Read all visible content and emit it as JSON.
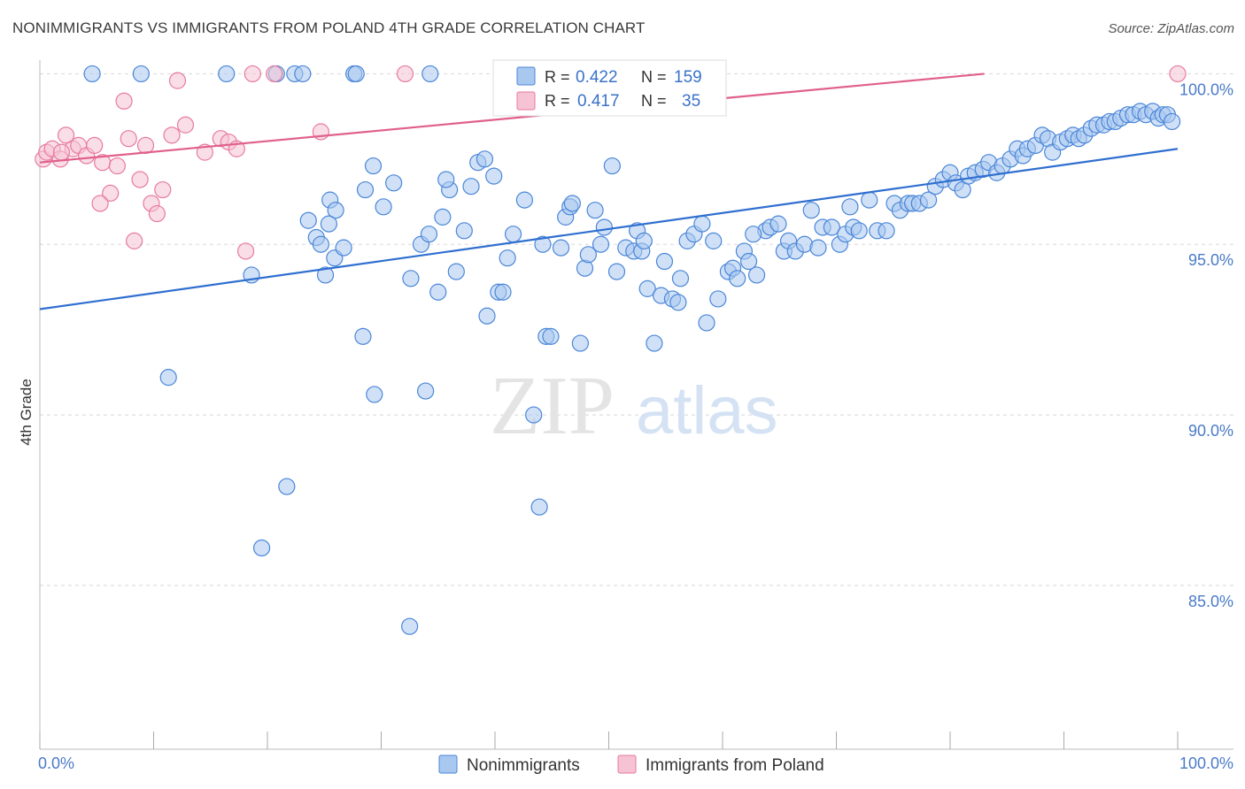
{
  "title": "NONIMMIGRANTS VS IMMIGRANTS FROM POLAND 4TH GRADE CORRELATION CHART",
  "source": "Source: ZipAtlas.com",
  "watermark": {
    "zip": "ZIP",
    "atlas": "atlas"
  },
  "colors": {
    "blue": "#4a86d8",
    "blue_fill": "#a9c8f0",
    "blue_line": "#2f6fd0",
    "pink": "#e77aa0",
    "pink_fill": "#f6c3d4",
    "pink_line": "#e0608a",
    "grid": "#d8d8d8",
    "tick_text": "#4a7bc8"
  },
  "legend": {
    "r_label": "R =",
    "n_label": "N =",
    "rows": [
      {
        "r": "0.422",
        "n": "159"
      },
      {
        "r": "0.417",
        "n": "35"
      }
    ]
  },
  "chart_data": {
    "type": "scatter",
    "title": "NONIMMIGRANTS VS IMMIGRANTS FROM POLAND 4TH GRADE CORRELATION CHART",
    "xlabel": "",
    "ylabel": "4th Grade",
    "xlim": [
      0,
      100
    ],
    "ylim": [
      80.2,
      100.4
    ],
    "x_tick_labels": [
      "0.0%",
      "100.0%"
    ],
    "y_ticks": [
      {
        "value": 100,
        "label": "100.0%"
      },
      {
        "value": 95,
        "label": "95.0%"
      },
      {
        "value": 90,
        "label": "90.0%"
      },
      {
        "value": 85,
        "label": "85.0%"
      }
    ],
    "grid": true,
    "legend_position": "top-center",
    "series": [
      {
        "name": "Nonimmigrants",
        "trend": {
          "x0": 0,
          "y0": 93.1,
          "x1": 100,
          "y1": 97.8
        },
        "points": [
          [
            4.6,
            100
          ],
          [
            8.9,
            100
          ],
          [
            16.4,
            100
          ],
          [
            20.8,
            100
          ],
          [
            22.4,
            100
          ],
          [
            23.1,
            100
          ],
          [
            27.6,
            100
          ],
          [
            27.8,
            100
          ],
          [
            34.3,
            100
          ],
          [
            11.3,
            91.1
          ],
          [
            21.7,
            87.9
          ],
          [
            19.5,
            86.1
          ],
          [
            32.5,
            83.8
          ],
          [
            29.4,
            90.6
          ],
          [
            33.9,
            90.7
          ],
          [
            43.4,
            90
          ],
          [
            43.9,
            87.3
          ],
          [
            29.3,
            97.3
          ],
          [
            28.6,
            96.6
          ],
          [
            25.5,
            96.3
          ],
          [
            26,
            96
          ],
          [
            25.4,
            95.6
          ],
          [
            23.6,
            95.7
          ],
          [
            24.3,
            95.2
          ],
          [
            24.7,
            95
          ],
          [
            25.9,
            94.6
          ],
          [
            25.1,
            94.1
          ],
          [
            28.4,
            92.3
          ],
          [
            32.6,
            94
          ],
          [
            33.5,
            95
          ],
          [
            34.2,
            95.3
          ],
          [
            35,
            93.6
          ],
          [
            35.4,
            95.8
          ],
          [
            36,
            96.6
          ],
          [
            35.7,
            96.9
          ],
          [
            36.6,
            94.2
          ],
          [
            37.9,
            96.7
          ],
          [
            38.5,
            97.4
          ],
          [
            39.1,
            97.5
          ],
          [
            39.9,
            97
          ],
          [
            39.3,
            92.9
          ],
          [
            40.3,
            93.6
          ],
          [
            40.7,
            93.6
          ],
          [
            41.1,
            94.6
          ],
          [
            41.6,
            95.3
          ],
          [
            42.6,
            96.3
          ],
          [
            44.2,
            95
          ],
          [
            44.5,
            92.3
          ],
          [
            44.9,
            92.3
          ],
          [
            46.2,
            95.8
          ],
          [
            46.6,
            96.1
          ],
          [
            46.8,
            96.2
          ],
          [
            47.5,
            92.1
          ],
          [
            47.9,
            94.3
          ],
          [
            48.2,
            94.7
          ],
          [
            48.8,
            96
          ],
          [
            49.3,
            95
          ],
          [
            49.6,
            95.5
          ],
          [
            50.3,
            97.3
          ],
          [
            50.7,
            94.2
          ],
          [
            51.5,
            94.9
          ],
          [
            52.2,
            94.8
          ],
          [
            52.5,
            95.4
          ],
          [
            52.9,
            94.8
          ],
          [
            53.4,
            93.7
          ],
          [
            54,
            92.1
          ],
          [
            54.6,
            93.5
          ],
          [
            54.9,
            94.5
          ],
          [
            55.6,
            93.4
          ],
          [
            56.1,
            93.3
          ],
          [
            56.3,
            94
          ],
          [
            56.9,
            95.1
          ],
          [
            57.5,
            95.3
          ],
          [
            58.2,
            95.6
          ],
          [
            58.6,
            92.7
          ],
          [
            59.2,
            95.1
          ],
          [
            59.6,
            93.4
          ],
          [
            60.5,
            94.2
          ],
          [
            60.9,
            94.3
          ],
          [
            61.3,
            94
          ],
          [
            61.9,
            94.8
          ],
          [
            62.3,
            94.5
          ],
          [
            63,
            94.1
          ],
          [
            63.8,
            95.4
          ],
          [
            64.2,
            95.5
          ],
          [
            64.9,
            95.6
          ],
          [
            65.4,
            94.8
          ],
          [
            65.8,
            95.1
          ],
          [
            66.4,
            94.8
          ],
          [
            67.2,
            95
          ],
          [
            67.8,
            96
          ],
          [
            68.4,
            94.9
          ],
          [
            68.8,
            95.5
          ],
          [
            69.6,
            95.5
          ],
          [
            70.3,
            95
          ],
          [
            70.8,
            95.3
          ],
          [
            71.5,
            95.5
          ],
          [
            72,
            95.4
          ],
          [
            72.9,
            96.3
          ],
          [
            73.6,
            95.4
          ],
          [
            74.4,
            95.4
          ],
          [
            75.1,
            96.2
          ],
          [
            75.6,
            96
          ],
          [
            76.3,
            96.2
          ],
          [
            76.7,
            96.2
          ],
          [
            77.3,
            96.2
          ],
          [
            78.1,
            96.3
          ],
          [
            78.7,
            96.7
          ],
          [
            79.4,
            96.9
          ],
          [
            80,
            97.1
          ],
          [
            80.5,
            96.8
          ],
          [
            81.1,
            96.6
          ],
          [
            81.6,
            97
          ],
          [
            82.2,
            97.1
          ],
          [
            82.9,
            97.2
          ],
          [
            83.4,
            97.4
          ],
          [
            84.1,
            97.1
          ],
          [
            84.6,
            97.3
          ],
          [
            85.3,
            97.5
          ],
          [
            85.9,
            97.8
          ],
          [
            86.4,
            97.6
          ],
          [
            86.8,
            97.8
          ],
          [
            87.5,
            97.9
          ],
          [
            88.1,
            98.2
          ],
          [
            88.6,
            98.1
          ],
          [
            89,
            97.7
          ],
          [
            89.7,
            98
          ],
          [
            90.3,
            98.1
          ],
          [
            90.8,
            98.2
          ],
          [
            91.3,
            98.1
          ],
          [
            91.8,
            98.2
          ],
          [
            92.4,
            98.4
          ],
          [
            92.9,
            98.5
          ],
          [
            93.5,
            98.5
          ],
          [
            94,
            98.6
          ],
          [
            94.5,
            98.6
          ],
          [
            95,
            98.7
          ],
          [
            95.6,
            98.8
          ],
          [
            96.1,
            98.8
          ],
          [
            96.7,
            98.9
          ],
          [
            97.2,
            98.8
          ],
          [
            97.8,
            98.9
          ],
          [
            98.3,
            98.7
          ],
          [
            98.7,
            98.8
          ],
          [
            99.1,
            98.8
          ],
          [
            99.5,
            98.6
          ],
          [
            18.6,
            94.1
          ],
          [
            26.7,
            94.9
          ],
          [
            30.2,
            96.1
          ],
          [
            31.1,
            96.8
          ],
          [
            37.3,
            95.4
          ],
          [
            45.8,
            94.9
          ],
          [
            53.1,
            95.1
          ],
          [
            62.7,
            95.3
          ],
          [
            71.2,
            96.1
          ]
        ]
      },
      {
        "name": "Immigrants from Poland",
        "trend": {
          "x0": 0,
          "y0": 97.4,
          "x1": 83,
          "y1": 100
        },
        "points": [
          [
            0.3,
            97.5
          ],
          [
            0.6,
            97.7
          ],
          [
            1.1,
            97.8
          ],
          [
            1.8,
            97.5
          ],
          [
            2.3,
            98.2
          ],
          [
            2.9,
            97.8
          ],
          [
            3.4,
            97.9
          ],
          [
            4.1,
            97.6
          ],
          [
            4.8,
            97.9
          ],
          [
            5.5,
            97.4
          ],
          [
            6.2,
            96.5
          ],
          [
            6.8,
            97.3
          ],
          [
            7.4,
            99.2
          ],
          [
            7.8,
            98.1
          ],
          [
            8.3,
            95.1
          ],
          [
            8.8,
            96.9
          ],
          [
            9.3,
            97.9
          ],
          [
            9.8,
            96.2
          ],
          [
            10.3,
            95.9
          ],
          [
            10.8,
            96.6
          ],
          [
            11.6,
            98.2
          ],
          [
            12.1,
            99.8
          ],
          [
            12.8,
            98.5
          ],
          [
            14.5,
            97.7
          ],
          [
            15.9,
            98.1
          ],
          [
            16.6,
            98
          ],
          [
            17.3,
            97.8
          ],
          [
            18.1,
            94.8
          ],
          [
            18.7,
            100
          ],
          [
            20.6,
            100
          ],
          [
            24.7,
            98.3
          ],
          [
            32.1,
            100
          ],
          [
            5.3,
            96.2
          ],
          [
            1.9,
            97.7
          ],
          [
            100,
            100
          ]
        ]
      }
    ]
  }
}
